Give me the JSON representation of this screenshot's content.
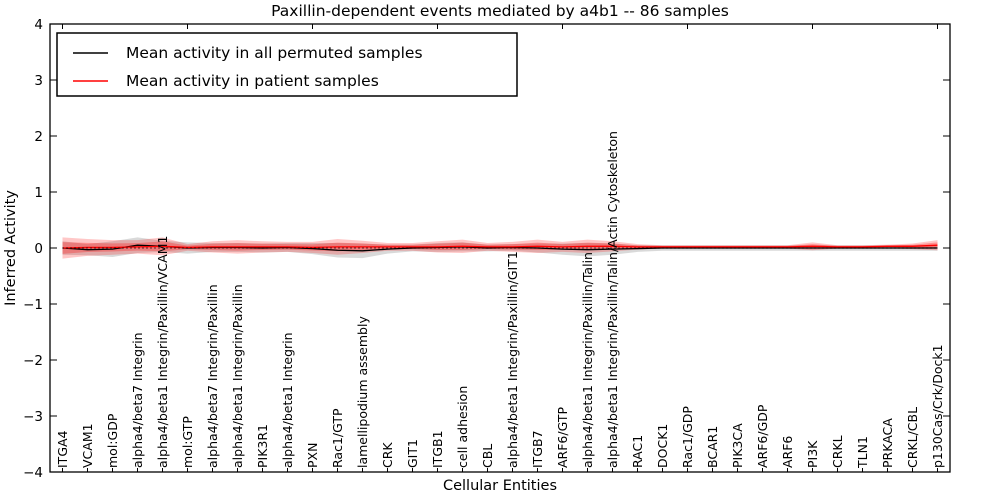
{
  "figure": {
    "background": "#ffffff"
  },
  "chart_data": {
    "type": "line",
    "title": "Paxillin-dependent events mediated by a4b1 -- 86 samples",
    "xlabel": "Cellular Entities",
    "ylabel": "Inferred Activity",
    "ylim": [
      -4,
      4
    ],
    "yticks": [
      -4,
      -3,
      -2,
      -1,
      0,
      1,
      2,
      3,
      4
    ],
    "grid": false,
    "legend_position": "upper-left",
    "zero_reference_line": 0,
    "categories": [
      "ITGA4",
      "VCAM1",
      "mol:GDP",
      "alpha4/beta7 Integrin",
      "alpha4/beta1 Integrin/Paxillin/VCAM1",
      "mol:GTP",
      "alpha4/beta7 Integrin/Paxillin",
      "alpha4/beta1 Integrin/Paxillin",
      "PIK3R1",
      "alpha4/beta1 Integrin",
      "PXN",
      "Rac1/GTP",
      "lamellipodium assembly",
      "CRK",
      "GIT1",
      "ITGB1",
      "cell adhesion",
      "CBL",
      "alpha4/beta1 Integrin/Paxillin/GIT1",
      "ITGB7",
      "ARF6/GTP",
      "alpha4/beta1 Integrin/Paxillin/Talin",
      "alpha4/beta1 Integrin/Paxillin/Talin/Actin Cytoskeleton",
      "RAC1",
      "DOCK1",
      "Rac1/GDP",
      "BCAR1",
      "PIK3CA",
      "ARF6/GDP",
      "ARF6",
      "PI3K",
      "CRKL",
      "TLN1",
      "PRKACA",
      "CRKL/CBL",
      "p130Cas/Crk/Dock1"
    ],
    "series": [
      {
        "name": "Mean activity in all permuted samples",
        "line_color": "#000000",
        "band_color": "rgba(130,130,130,0.30)",
        "mean": [
          0.0,
          -0.03,
          -0.02,
          0.05,
          0.03,
          0.0,
          0.01,
          0.01,
          0.0,
          0.01,
          -0.01,
          -0.04,
          -0.05,
          -0.02,
          0.0,
          0.01,
          0.02,
          0.0,
          0.01,
          0.0,
          -0.02,
          -0.03,
          -0.02,
          -0.01,
          0.0,
          0.0,
          0.0,
          0.0,
          0.0,
          0.0,
          0.0,
          0.0,
          0.0,
          0.0,
          0.0,
          0.0
        ],
        "std": [
          0.12,
          0.1,
          0.14,
          0.14,
          0.1,
          0.1,
          0.08,
          0.08,
          0.08,
          0.08,
          0.1,
          0.13,
          0.13,
          0.08,
          0.06,
          0.08,
          0.08,
          0.06,
          0.06,
          0.08,
          0.1,
          0.12,
          0.1,
          0.06,
          0.05,
          0.05,
          0.05,
          0.05,
          0.05,
          0.05,
          0.05,
          0.05,
          0.05,
          0.05,
          0.05,
          0.05
        ]
      },
      {
        "name": "Mean activity in patient samples",
        "line_color": "#ff0000",
        "band_color": "rgba(255,0,0,0.22)",
        "inner_band_color": "rgba(255,0,0,0.28)",
        "mean": [
          0.0,
          0.01,
          0.01,
          0.02,
          0.03,
          0.01,
          0.02,
          0.02,
          0.02,
          0.02,
          0.01,
          0.02,
          0.02,
          0.02,
          0.02,
          0.02,
          0.03,
          0.02,
          0.02,
          0.03,
          0.02,
          0.03,
          0.03,
          0.02,
          0.02,
          0.02,
          0.02,
          0.02,
          0.02,
          0.02,
          0.03,
          0.02,
          0.02,
          0.03,
          0.03,
          0.05
        ],
        "std": [
          0.19,
          0.15,
          0.13,
          0.12,
          0.16,
          0.06,
          0.1,
          0.12,
          0.1,
          0.09,
          0.1,
          0.14,
          0.11,
          0.07,
          0.07,
          0.1,
          0.12,
          0.07,
          0.09,
          0.12,
          0.09,
          0.12,
          0.09,
          0.05,
          0.03,
          0.03,
          0.03,
          0.03,
          0.03,
          0.03,
          0.07,
          0.03,
          0.03,
          0.03,
          0.05,
          0.09
        ]
      }
    ]
  }
}
